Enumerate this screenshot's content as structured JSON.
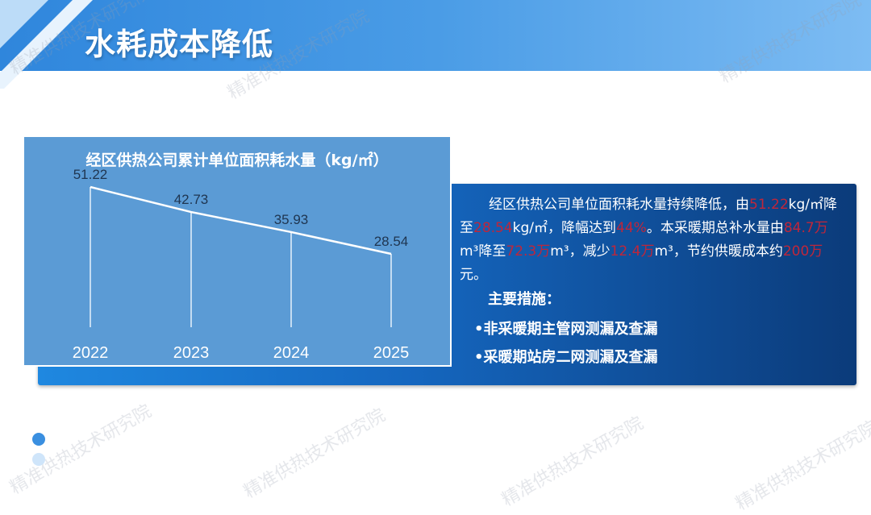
{
  "slide": {
    "title": "水耗成本降低",
    "watermark": "精准供热技术研究院",
    "summary": {
      "p1": "经区供热公司单位面积耗水量持续降低，由",
      "v1": "51.22",
      "p2": "kg/㎡降至",
      "v2": "28.54",
      "p3": "kg/㎡，降幅达到",
      "v3": "44%",
      "p4": "。本采暖期总补水量由",
      "v4": "84.7万",
      "p5": "m³降至",
      "v5": "72.3万",
      "p6": "m³，减少",
      "v6": "12.4万",
      "p7": "m³，节约供暖成本约",
      "v7": "200万",
      "p8": "元。"
    },
    "measures_title": "主要措施：",
    "measures": [
      "•非采暖期主管网测漏及查漏",
      "•采暖期站房二网测漏及查漏"
    ],
    "colors": {
      "header": "#3a8fe0",
      "chart_bg": "#5b9bd5",
      "panel_dark": "#0b3b7a",
      "highlight": "#c0263a"
    }
  },
  "chart_data": {
    "type": "line",
    "title": "经区供热公司累计单位面积耗水量（kg/㎡）",
    "categories": [
      "2022",
      "2023",
      "2024",
      "2025"
    ],
    "values": [
      51.22,
      42.73,
      35.93,
      28.54
    ],
    "data_labels": [
      "51.22",
      "42.73",
      "35.93",
      "28.54"
    ],
    "drop_lines": true,
    "grid": false,
    "legend": "none"
  }
}
